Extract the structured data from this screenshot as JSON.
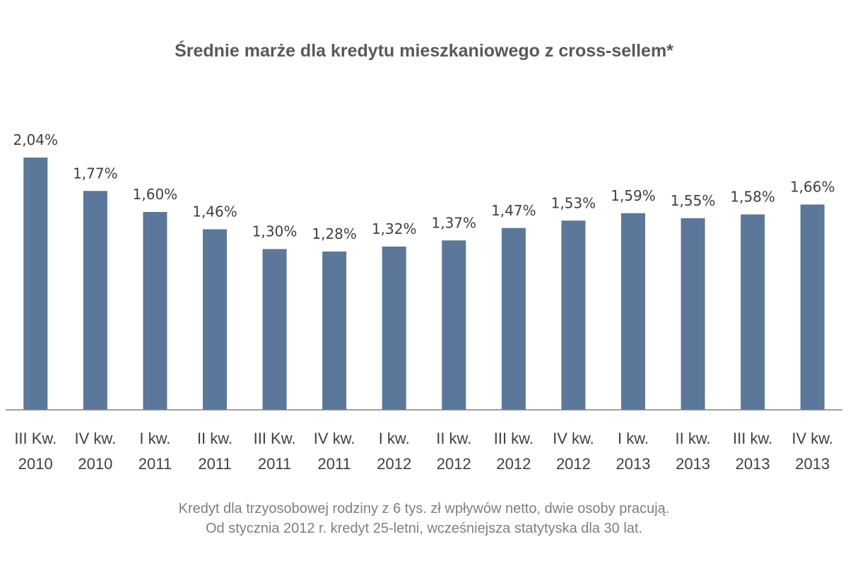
{
  "chart_data": {
    "type": "bar",
    "title": "Średnie marże dla kredytu mieszkaniowego z cross-sellem*",
    "categories": [
      [
        "III Kw.",
        "2010"
      ],
      [
        "IV kw.",
        "2010"
      ],
      [
        "I kw.",
        "2011"
      ],
      [
        "II kw.",
        "2011"
      ],
      [
        "III Kw.",
        "2011"
      ],
      [
        "IV kw.",
        "2011"
      ],
      [
        "I kw.",
        "2012"
      ],
      [
        "II kw.",
        "2012"
      ],
      [
        "III kw.",
        "2012"
      ],
      [
        "IV kw.",
        "2012"
      ],
      [
        "I kw.",
        "2013"
      ],
      [
        "II kw.",
        "2013"
      ],
      [
        "III kw.",
        "2013"
      ],
      [
        "IV kw.",
        "2013"
      ]
    ],
    "values": [
      2.04,
      1.77,
      1.6,
      1.46,
      1.3,
      1.28,
      1.32,
      1.37,
      1.47,
      1.53,
      1.59,
      1.55,
      1.58,
      1.66
    ],
    "value_labels": [
      "2,04%",
      "1,77%",
      "1,60%",
      "1,46%",
      "1,30%",
      "1,28%",
      "1,32%",
      "1,37%",
      "1,47%",
      "1,53%",
      "1,59%",
      "1,55%",
      "1,58%",
      "1,66%"
    ],
    "ylim": [
      0,
      2.04
    ],
    "grid": false,
    "legend": "none",
    "xlabel": "",
    "ylabel": "",
    "bar_color": "#5b7799",
    "axis_color": "#7f7f7f",
    "label_color": "#404040"
  },
  "footnote": {
    "line1": "Kredyt dla trzyosobowej rodziny z 6 tys. zł wpływów netto, dwie osoby pracują.",
    "line2": "Od stycznia 2012 r. kredyt 25-letni, wcześniejsza statytyska dla 30 lat."
  }
}
